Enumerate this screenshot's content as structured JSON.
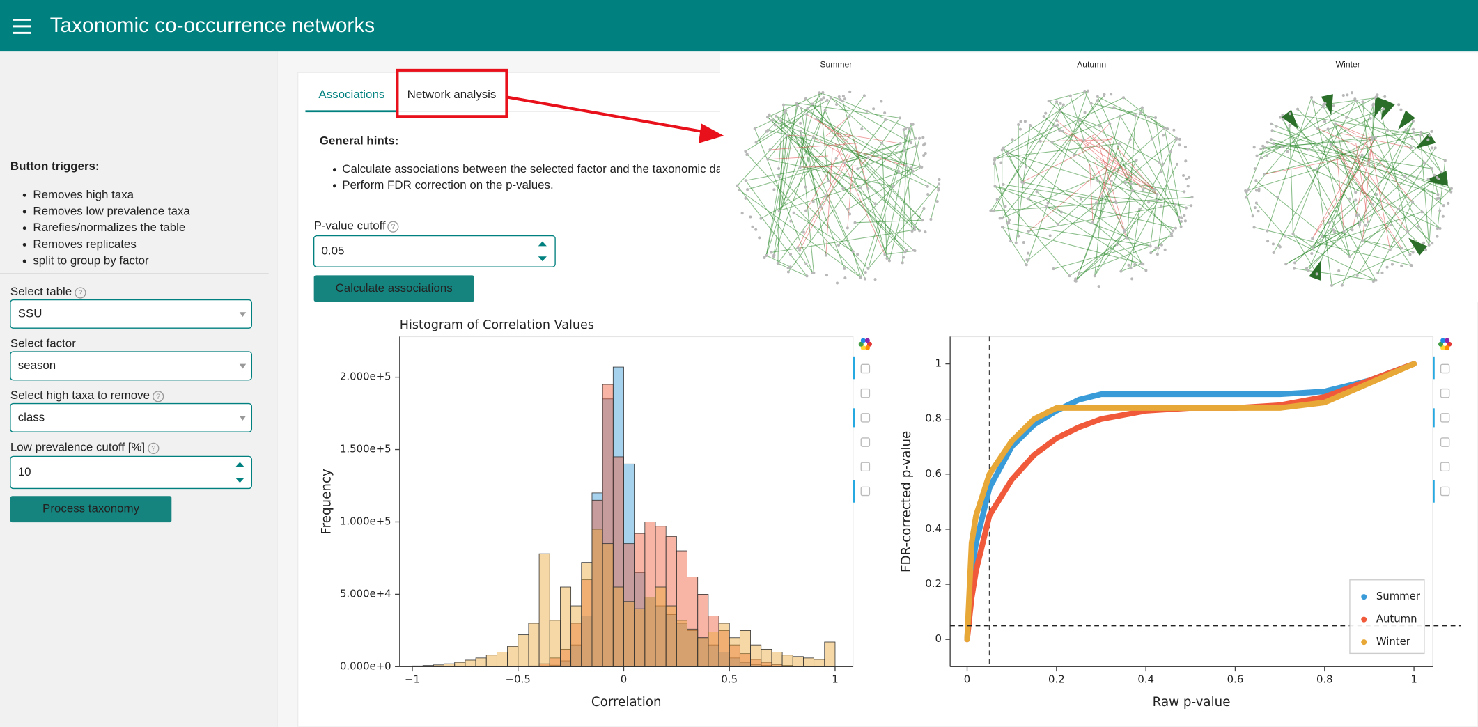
{
  "header": {
    "title": "Taxonomic co-occurrence networks"
  },
  "sidebar": {
    "heading": "Button triggers:",
    "bullets": [
      "Removes high taxa",
      "Removes low prevalence taxa",
      "Rarefies/normalizes the table",
      "Removes replicates",
      "split to group by factor"
    ],
    "fields": [
      {
        "label": "Select table",
        "value": "SSU"
      },
      {
        "label": "Select factor",
        "value": "season"
      },
      {
        "label": "Select high taxa to remove",
        "value": "class"
      },
      {
        "label": "Low prevalence cutoff [%]",
        "value": 10
      }
    ],
    "button": "Process taxonomy"
  },
  "tabs": [
    "Associations",
    "Network analysis"
  ],
  "hints": {
    "title": "General hints:",
    "items": [
      "Calculate associations between the selected factor and the taxonomic data.",
      "Perform FDR correction on the p-values."
    ]
  },
  "form": {
    "label": "P-value cutoff",
    "cutoff": 0.05,
    "button": "Calculate associations"
  },
  "networks": {
    "titles": [
      "Summer",
      "Autumn",
      "Winter"
    ]
  },
  "chart_data": [
    {
      "type": "histogram",
      "title": "Histogram of Correlation Values",
      "x_label": "Correlation",
      "y_label": "Frequency",
      "bins": [
        -1,
        -0.95,
        -0.9,
        -0.85,
        -0.8,
        -0.75,
        -0.7,
        -0.65,
        -0.6,
        -0.55,
        -0.5,
        -0.45,
        -0.4,
        -0.35,
        -0.3,
        -0.25,
        -0.2,
        -0.15,
        -0.1,
        -0.05,
        0,
        0.05,
        0.1,
        0.15,
        0.2,
        0.25,
        0.3,
        0.35,
        0.4,
        0.45,
        0.5,
        0.55,
        0.6,
        0.65,
        0.7,
        0.75,
        0.8,
        0.85,
        0.9,
        0.95,
        1
      ],
      "series": [
        {
          "color": "#3a9bd9",
          "values": [
            0,
            0,
            0,
            0,
            0,
            0,
            0,
            0,
            0,
            0,
            0,
            0,
            500,
            1000,
            4000,
            15000,
            35000,
            120000,
            185000,
            207000,
            140000,
            65000,
            48000,
            42000,
            36000,
            30000,
            25000,
            20000,
            15000,
            10000,
            6000,
            3000,
            1500,
            800,
            400,
            200,
            100,
            0,
            0,
            0
          ]
        },
        {
          "color": "#f05a3a",
          "values": [
            0,
            0,
            0,
            0,
            0,
            0,
            0,
            0,
            0,
            0,
            0,
            500,
            2000,
            6000,
            12000,
            30000,
            60000,
            115000,
            195000,
            145000,
            85000,
            92000,
            100000,
            97000,
            90000,
            80000,
            62000,
            50000,
            35000,
            25000,
            15000,
            9000,
            5000,
            3000,
            1500,
            800,
            400,
            200,
            100,
            0
          ]
        },
        {
          "color": "#e8a838",
          "values": [
            500,
            800,
            1200,
            2000,
            3000,
            4500,
            6000,
            8000,
            10000,
            14000,
            22000,
            30000,
            78000,
            32000,
            55000,
            42000,
            72000,
            95000,
            85000,
            55000,
            45000,
            40000,
            48000,
            55000,
            42000,
            32000,
            26000,
            20000,
            24000,
            30000,
            20000,
            25000,
            15000,
            12000,
            10000,
            8000,
            7000,
            6000,
            5000,
            17000
          ]
        }
      ],
      "xlim": [
        -1.06,
        1.085
      ],
      "ylim": [
        0,
        228000
      ],
      "xticks": [
        {
          "value": -1,
          "label": "−1"
        },
        {
          "value": -0.5,
          "label": "−0.5"
        },
        0,
        0.5,
        1
      ],
      "yticks": [
        {
          "value": 0,
          "label": "0.000e+0"
        },
        {
          "value": 50000,
          "label": "5.000e+4"
        },
        {
          "value": 100000,
          "label": "1.000e+5"
        },
        {
          "value": 150000,
          "label": "1.500e+5"
        },
        {
          "value": 200000,
          "label": "2.000e+5"
        }
      ]
    },
    {
      "type": "line",
      "x_label": "Raw p-value",
      "y_label": "FDR-corrected p-value",
      "x": [
        0,
        0.01,
        0.02,
        0.05,
        0.1,
        0.15,
        0.2,
        0.25,
        0.3,
        0.4,
        0.5,
        0.6,
        0.7,
        0.8,
        0.9,
        1
      ],
      "series": [
        {
          "name": "Summer",
          "color": "#3a9bd9",
          "values": [
            0,
            0.25,
            0.35,
            0.55,
            0.7,
            0.78,
            0.83,
            0.87,
            0.89,
            0.89,
            0.89,
            0.89,
            0.89,
            0.9,
            0.94,
            1
          ]
        },
        {
          "name": "Autumn",
          "color": "#f05a3a",
          "values": [
            0,
            0.15,
            0.25,
            0.45,
            0.58,
            0.67,
            0.73,
            0.77,
            0.8,
            0.83,
            0.84,
            0.84,
            0.85,
            0.88,
            0.94,
            1
          ]
        },
        {
          "name": "Winter",
          "color": "#e8a838",
          "values": [
            0,
            0.35,
            0.45,
            0.6,
            0.72,
            0.8,
            0.84,
            0.84,
            0.84,
            0.84,
            0.84,
            0.84,
            0.84,
            0.86,
            0.93,
            1
          ]
        }
      ],
      "xlim": [
        -0.038,
        1.042
      ],
      "ylim": [
        -0.099,
        1.099
      ],
      "xticks": [
        0,
        0.2,
        0.4,
        0.6,
        0.8,
        1
      ],
      "yticks": [
        0,
        0.2,
        0.4,
        0.6,
        0.8,
        1
      ],
      "legend": "bottom-right"
    }
  ]
}
